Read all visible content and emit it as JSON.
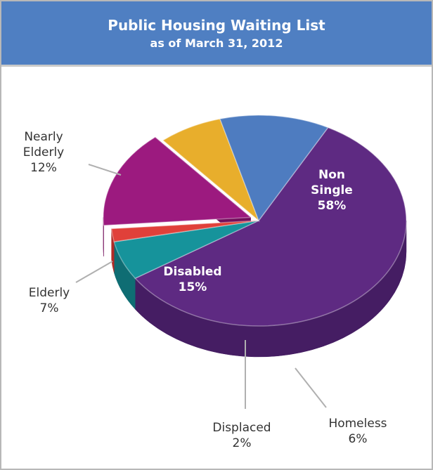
{
  "header": {
    "title": "Public Housing Waiting List",
    "subtitle": "as of March 31, 2012"
  },
  "chart_data": {
    "type": "pie",
    "title": "Public Housing Waiting List",
    "subtitle": "as of March 31, 2012",
    "three_d": true,
    "slices": [
      {
        "name": "Non Single",
        "value": 58,
        "label_lines": [
          "Non",
          "Single"
        ],
        "percent_text": "58%",
        "color": "#5e2a82",
        "side_color": "#451d63",
        "label_placement": "inside"
      },
      {
        "name": "Homeless",
        "value": 6,
        "label_lines": [
          "Homeless"
        ],
        "percent_text": "6%",
        "color": "#16939b",
        "side_color": "#0f6d73",
        "label_placement": "outside"
      },
      {
        "name": "Displaced",
        "value": 2,
        "label_lines": [
          "Displaced"
        ],
        "percent_text": "2%",
        "color": "#e0403a",
        "side_color": "#b02b27",
        "label_placement": "outside"
      },
      {
        "name": "Disabled",
        "value": 15,
        "label_lines": [
          "Disabled"
        ],
        "percent_text": "15%",
        "color": "#9c1a7f",
        "side_color": "#730f5c",
        "label_placement": "inside"
      },
      {
        "name": "Elderly",
        "value": 7,
        "label_lines": [
          "Elderly"
        ],
        "percent_text": "7%",
        "color": "#e8ae2c",
        "side_color": "#bf8a17",
        "label_placement": "outside"
      },
      {
        "name": "Nearly Elderly",
        "value": 12,
        "label_lines": [
          "Nearly",
          "Elderly"
        ],
        "percent_text": "12%",
        "color": "#4e7cc0",
        "side_color": "#365f99",
        "label_placement": "outside"
      }
    ]
  }
}
